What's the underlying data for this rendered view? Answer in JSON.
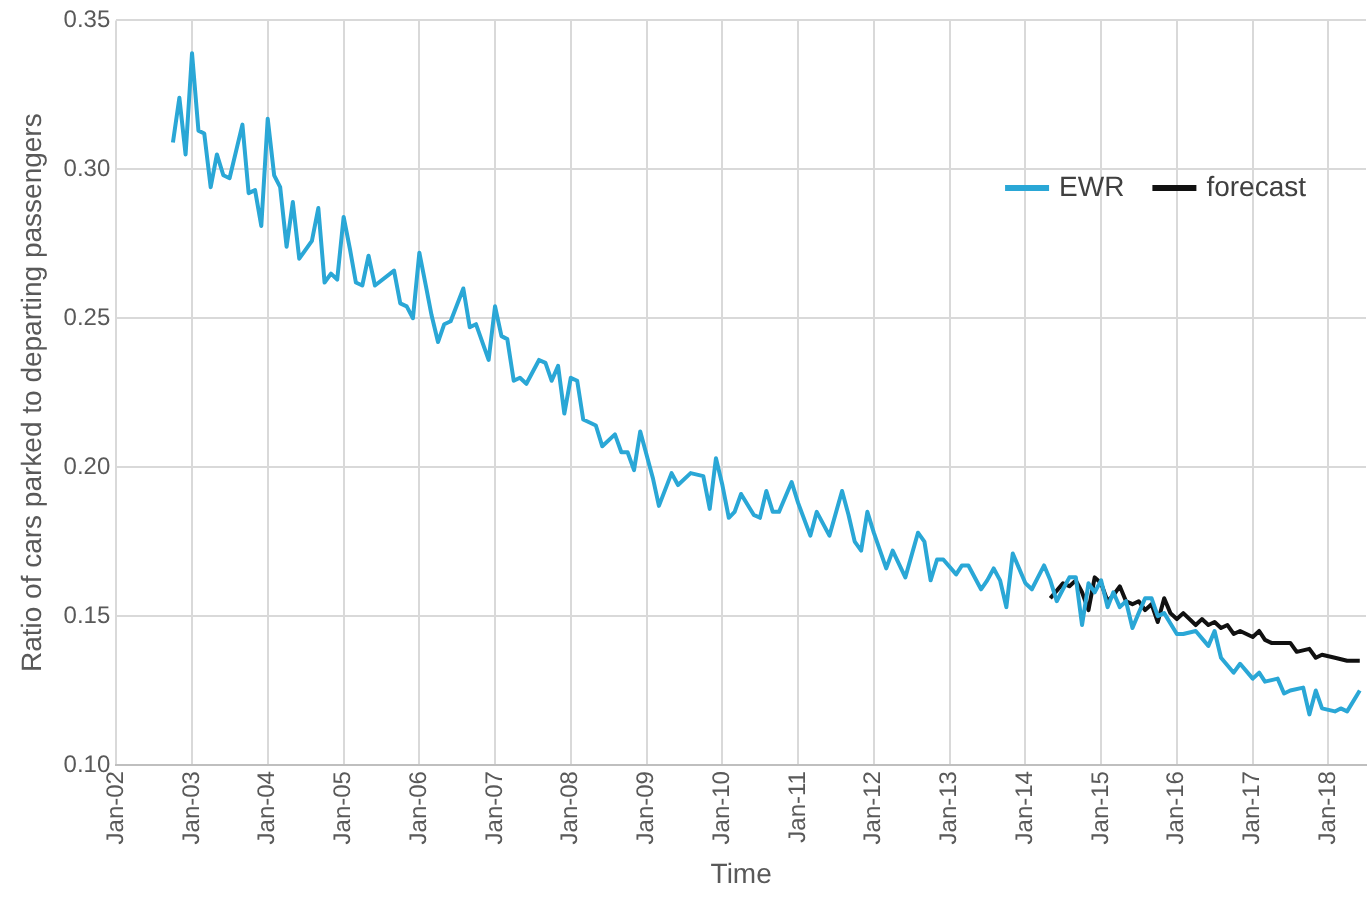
{
  "chart_data": {
    "type": "line",
    "xlabel": "Time",
    "ylabel": "Ratio of cars parked to departing passengers",
    "xlim": [
      "2002-01",
      "2018-07"
    ],
    "xticks": [
      {
        "value": "2002-01",
        "label": "Jan-02"
      },
      {
        "value": "2003-01",
        "label": "Jan-03"
      },
      {
        "value": "2004-01",
        "label": "Jan-04"
      },
      {
        "value": "2005-01",
        "label": "Jan-05"
      },
      {
        "value": "2006-01",
        "label": "Jan-06"
      },
      {
        "value": "2007-01",
        "label": "Jan-07"
      },
      {
        "value": "2008-01",
        "label": "Jan-08"
      },
      {
        "value": "2009-01",
        "label": "Jan-09"
      },
      {
        "value": "2010-01",
        "label": "Jan-10"
      },
      {
        "value": "2011-01",
        "label": "Jan-11"
      },
      {
        "value": "2012-01",
        "label": "Jan-12"
      },
      {
        "value": "2013-01",
        "label": "Jan-13"
      },
      {
        "value": "2014-01",
        "label": "Jan-14"
      },
      {
        "value": "2015-01",
        "label": "Jan-15"
      },
      {
        "value": "2016-01",
        "label": "Jan-16"
      },
      {
        "value": "2017-01",
        "label": "Jan-17"
      },
      {
        "value": "2018-01",
        "label": "Jan-18"
      }
    ],
    "ylim": [
      0.1,
      0.35
    ],
    "yticks": [
      {
        "value": 0.1,
        "label": "0.10"
      },
      0.15,
      {
        "value": 0.2,
        "label": "0.20"
      },
      0.25,
      {
        "value": 0.3,
        "label": "0.30"
      },
      0.35
    ],
    "grid": true,
    "legend": "top right",
    "marker": "none",
    "line_style": "solid",
    "series": [
      {
        "name": "EWR",
        "color": "#2aa7d6",
        "x": [
          "2002-10",
          "2002-11",
          "2002-12",
          "2003-01",
          "2003-02",
          "2003-03",
          "2003-04",
          "2003-05",
          "2003-06",
          "2003-07",
          "2003-09",
          "2003-10",
          "2003-11",
          "2003-12",
          "2004-01",
          "2004-02",
          "2004-03",
          "2004-04",
          "2004-05",
          "2004-06",
          "2004-08",
          "2004-09",
          "2004-10",
          "2004-11",
          "2004-12",
          "2005-01",
          "2005-02",
          "2005-03",
          "2005-04",
          "2005-05",
          "2005-06",
          "2005-09",
          "2005-10",
          "2005-11",
          "2005-12",
          "2006-01",
          "2006-02",
          "2006-03",
          "2006-04",
          "2006-05",
          "2006-06",
          "2006-08",
          "2006-09",
          "2006-10",
          "2006-12",
          "2007-01",
          "2007-02",
          "2007-03",
          "2007-04",
          "2007-05",
          "2007-06",
          "2007-08",
          "2007-09",
          "2007-10",
          "2007-11",
          "2007-12",
          "2008-01",
          "2008-02",
          "2008-03",
          "2008-04",
          "2008-05",
          "2008-06",
          "2008-08",
          "2008-09",
          "2008-10",
          "2008-11",
          "2008-12",
          "2009-02",
          "2009-03",
          "2009-05",
          "2009-06",
          "2009-08",
          "2009-10",
          "2009-11",
          "2009-12",
          "2010-01",
          "2010-02",
          "2010-03",
          "2010-04",
          "2010-06",
          "2010-07",
          "2010-08",
          "2010-09",
          "2010-10",
          "2010-12",
          "2011-01",
          "2011-03",
          "2011-04",
          "2011-06",
          "2011-08",
          "2011-09",
          "2011-10",
          "2011-11",
          "2011-12",
          "2012-01",
          "2012-03",
          "2012-04",
          "2012-06",
          "2012-08",
          "2012-09",
          "2012-10",
          "2012-11",
          "2012-12",
          "2013-02",
          "2013-03",
          "2013-04",
          "2013-06",
          "2013-07",
          "2013-08",
          "2013-09",
          "2013-10",
          "2013-11",
          "2014-01",
          "2014-02",
          "2014-04",
          "2014-05",
          "2014-06",
          "2014-07",
          "2014-08",
          "2014-09",
          "2014-10",
          "2014-11",
          "2014-12",
          "2015-01",
          "2015-02",
          "2015-03",
          "2015-04",
          "2015-05",
          "2015-06",
          "2015-07",
          "2015-08",
          "2015-09",
          "2015-10",
          "2015-11",
          "2016-01",
          "2016-02",
          "2016-04",
          "2016-06",
          "2016-07",
          "2016-08",
          "2016-10",
          "2016-11",
          "2017-01",
          "2017-02",
          "2017-03",
          "2017-05",
          "2017-06",
          "2017-07",
          "2017-09",
          "2017-10",
          "2017-11",
          "2017-12",
          "2018-02",
          "2018-03",
          "2018-04",
          "2018-06"
        ],
        "values": [
          0.309,
          0.324,
          0.305,
          0.339,
          0.313,
          0.312,
          0.294,
          0.305,
          0.298,
          0.297,
          0.315,
          0.292,
          0.293,
          0.281,
          0.317,
          0.298,
          0.294,
          0.274,
          0.289,
          0.27,
          0.276,
          0.287,
          0.262,
          0.265,
          0.263,
          0.284,
          0.273,
          0.262,
          0.261,
          0.271,
          0.261,
          0.266,
          0.255,
          0.254,
          0.25,
          0.272,
          0.261,
          0.251,
          0.242,
          0.248,
          0.249,
          0.26,
          0.247,
          0.248,
          0.236,
          0.254,
          0.244,
          0.243,
          0.229,
          0.23,
          0.228,
          0.236,
          0.235,
          0.229,
          0.234,
          0.218,
          0.23,
          0.229,
          0.216,
          0.215,
          0.214,
          0.207,
          0.211,
          0.205,
          0.205,
          0.199,
          0.212,
          0.196,
          0.187,
          0.198,
          0.194,
          0.198,
          0.197,
          0.186,
          0.203,
          0.194,
          0.183,
          0.185,
          0.191,
          0.184,
          0.183,
          0.192,
          0.185,
          0.185,
          0.195,
          0.188,
          0.177,
          0.185,
          0.177,
          0.192,
          0.184,
          0.175,
          0.172,
          0.185,
          0.178,
          0.166,
          0.172,
          0.163,
          0.178,
          0.175,
          0.162,
          0.169,
          0.169,
          0.164,
          0.167,
          0.167,
          0.159,
          0.162,
          0.166,
          0.162,
          0.153,
          0.171,
          0.161,
          0.159,
          0.167,
          0.162,
          0.155,
          0.159,
          0.163,
          0.163,
          0.147,
          0.161,
          0.158,
          0.162,
          0.153,
          0.158,
          0.153,
          0.155,
          0.146,
          0.151,
          0.156,
          0.156,
          0.15,
          0.151,
          0.144,
          0.144,
          0.145,
          0.14,
          0.145,
          0.136,
          0.131,
          0.134,
          0.129,
          0.131,
          0.128,
          0.129,
          0.124,
          0.125,
          0.126,
          0.117,
          0.125,
          0.119,
          0.118,
          0.119,
          0.118,
          0.125
        ]
      },
      {
        "name": "forecast",
        "color": "#111111",
        "x": [
          "2014-05",
          "2014-07",
          "2014-08",
          "2014-09",
          "2014-10",
          "2014-11",
          "2014-12",
          "2015-01",
          "2015-02",
          "2015-03",
          "2015-04",
          "2015-05",
          "2015-06",
          "2015-07",
          "2015-08",
          "2015-09",
          "2015-10",
          "2015-11",
          "2015-12",
          "2016-01",
          "2016-02",
          "2016-04",
          "2016-05",
          "2016-06",
          "2016-07",
          "2016-08",
          "2016-09",
          "2016-10",
          "2016-11",
          "2017-01",
          "2017-02",
          "2017-03",
          "2017-04",
          "2017-06",
          "2017-07",
          "2017-08",
          "2017-10",
          "2017-11",
          "2017-12",
          "2018-02",
          "2018-04",
          "2018-06"
        ],
        "values": [
          0.156,
          0.161,
          0.16,
          0.162,
          0.158,
          0.152,
          0.163,
          0.161,
          0.155,
          0.157,
          0.16,
          0.155,
          0.154,
          0.155,
          0.152,
          0.154,
          0.148,
          0.156,
          0.151,
          0.149,
          0.151,
          0.147,
          0.149,
          0.147,
          0.148,
          0.146,
          0.147,
          0.144,
          0.145,
          0.143,
          0.145,
          0.142,
          0.141,
          0.141,
          0.141,
          0.138,
          0.139,
          0.136,
          0.137,
          0.136,
          0.135,
          0.135
        ]
      }
    ]
  }
}
